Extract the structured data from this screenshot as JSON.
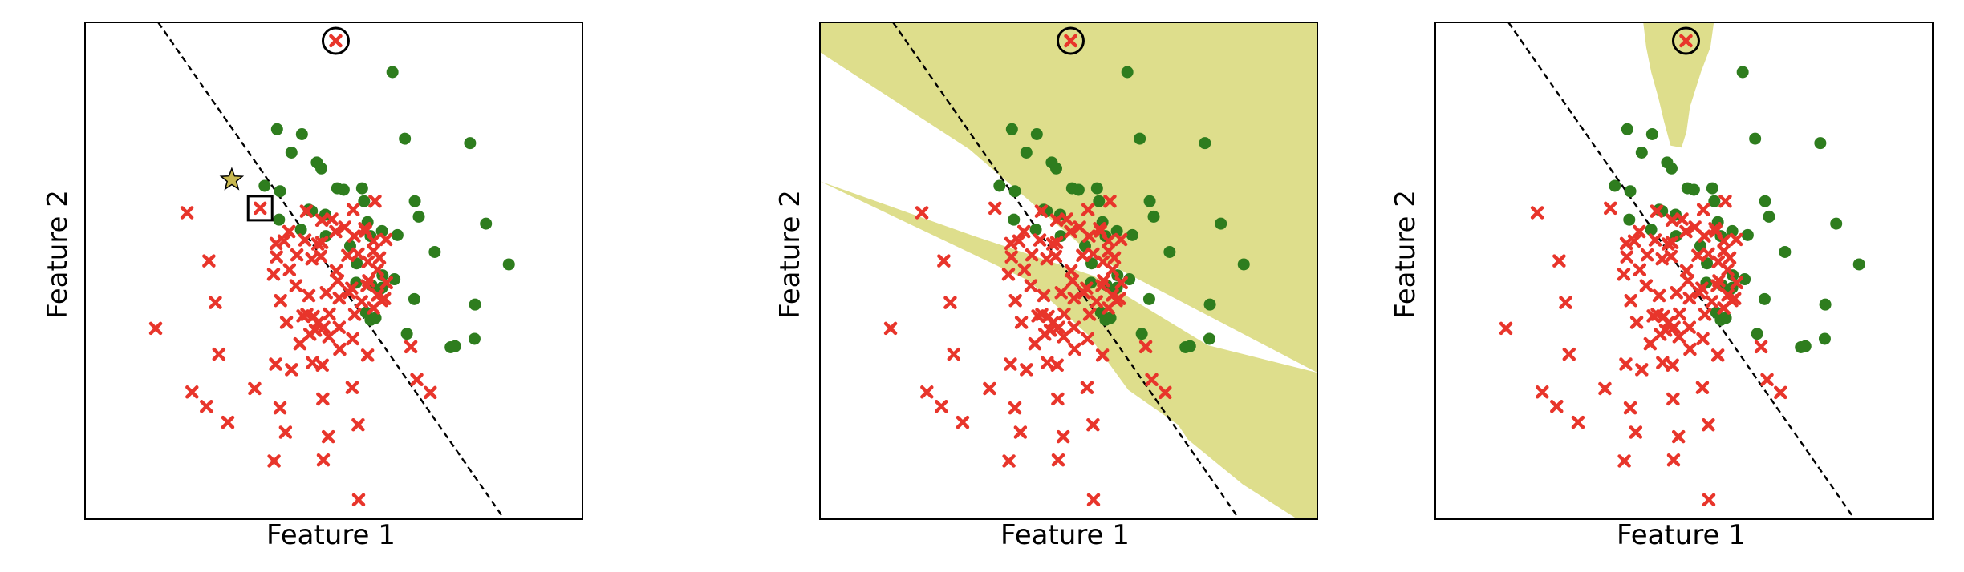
{
  "colors": {
    "class_a": "#e8352b",
    "class_b": "#2e7d1e",
    "region": "#dede8c",
    "star": "#c8b850",
    "boundary": "#000000"
  },
  "chart_data": [
    {
      "type": "scatter",
      "xlabel": "Feature 1",
      "ylabel": "Feature 2",
      "ticks": "none",
      "boundary_style": "dashed line",
      "region_fill": "none",
      "markers": {
        "star": "new sample",
        "square": "nearest neighbor",
        "circle": "outlier"
      }
    },
    {
      "type": "scatter",
      "xlabel": "Feature 1",
      "ylabel": "Feature 2",
      "ticks": "none",
      "boundary_style": "dashed line",
      "region_fill": "two shaded bands separated by white stripe",
      "markers": {
        "circle": "outlier"
      }
    },
    {
      "type": "scatter",
      "xlabel": "Feature 1",
      "ylabel": "Feature 2",
      "ticks": "none",
      "boundary_style": "dashed line",
      "region_fill": "small shaded region around outlier at top",
      "markers": {
        "circle": "outlier"
      }
    }
  ],
  "points": {
    "xlim": [
      0,
      100
    ],
    "ylim": [
      0,
      100
    ],
    "red": [
      [
        50.4,
        96.3
      ],
      [
        35.2,
        62.6
      ],
      [
        20.5,
        61.7
      ],
      [
        14.2,
        38.4
      ],
      [
        26.2,
        43.6
      ],
      [
        26.9,
        33.2
      ],
      [
        24.9,
        52.0
      ],
      [
        21.5,
        25.6
      ],
      [
        24.4,
        22.7
      ],
      [
        28.7,
        19.5
      ],
      [
        34.1,
        26.3
      ],
      [
        38.3,
        31.2
      ],
      [
        41.5,
        30.1
      ],
      [
        39.2,
        22.4
      ],
      [
        40.3,
        17.5
      ],
      [
        38.0,
        11.7
      ],
      [
        47.8,
        24.2
      ],
      [
        45.7,
        31.5
      ],
      [
        43.2,
        35.3
      ],
      [
        45.2,
        37.2
      ],
      [
        48.0,
        38.6
      ],
      [
        51.1,
        38.6
      ],
      [
        48.5,
        45.6
      ],
      [
        51.1,
        44.5
      ],
      [
        49.1,
        41.3
      ],
      [
        53.1,
        45.6
      ],
      [
        54.2,
        41.2
      ],
      [
        56.7,
        47.0
      ],
      [
        56.9,
        51.8
      ],
      [
        53.6,
        46.5
      ],
      [
        50.5,
        50.0
      ],
      [
        54.1,
        57.0
      ],
      [
        56.4,
        58.0
      ],
      [
        52.2,
        58.8
      ],
      [
        47.6,
        55.7
      ],
      [
        50.4,
        57.9
      ],
      [
        53.9,
        62.3
      ],
      [
        57.0,
        48.0
      ],
      [
        58.0,
        42.5
      ],
      [
        60.6,
        47.6
      ],
      [
        52.8,
        53.1
      ],
      [
        50.8,
        48.0
      ],
      [
        45.0,
        45.0
      ],
      [
        41.1,
        50.2
      ],
      [
        42.4,
        47.0
      ],
      [
        39.3,
        44.0
      ],
      [
        42.6,
        53.2
      ],
      [
        38.5,
        52.8
      ],
      [
        37.9,
        49.3
      ],
      [
        40.0,
        56.0
      ],
      [
        44.2,
        56.2
      ],
      [
        46.8,
        55.4
      ],
      [
        54.9,
        53.4
      ],
      [
        58.0,
        54.0
      ],
      [
        59.2,
        52.6
      ],
      [
        59.6,
        44.0
      ],
      [
        58.3,
        64.0
      ],
      [
        56.2,
        58.5
      ],
      [
        47.6,
        60.2
      ],
      [
        44.5,
        62.0
      ],
      [
        49.0,
        36.7
      ],
      [
        51.2,
        34.2
      ],
      [
        53.7,
        26.5
      ],
      [
        47.7,
        31.0
      ],
      [
        48.9,
        16.6
      ],
      [
        47.9,
        11.9
      ],
      [
        40.5,
        39.6
      ],
      [
        43.8,
        40.9
      ],
      [
        45.9,
        40.8
      ],
      [
        44.6,
        41.2
      ],
      [
        46.8,
        39.5
      ],
      [
        46.3,
        38.0
      ],
      [
        53.8,
        36.3
      ],
      [
        58.0,
        56.0
      ],
      [
        60.5,
        56.3
      ],
      [
        58.8,
        45.1
      ],
      [
        55.6,
        43.8
      ],
      [
        55.0,
        3.9
      ],
      [
        54.9,
        19.0
      ],
      [
        65.5,
        34.7
      ],
      [
        60.2,
        44.4
      ],
      [
        66.7,
        28.1
      ],
      [
        69.4,
        25.5
      ],
      [
        56.8,
        33.0
      ],
      [
        58.8,
        50.2
      ],
      [
        45.6,
        52.4
      ],
      [
        47.4,
        52.9
      ],
      [
        49.6,
        60.4
      ],
      [
        41.0,
        57.9
      ],
      [
        38.4,
        55.5
      ]
    ],
    "green": [
      [
        61.8,
        90.0
      ],
      [
        38.6,
        78.5
      ],
      [
        43.6,
        77.5
      ],
      [
        64.3,
        76.6
      ],
      [
        77.4,
        75.7
      ],
      [
        41.5,
        73.8
      ],
      [
        46.6,
        71.8
      ],
      [
        47.5,
        70.6
      ],
      [
        52.0,
        66.3
      ],
      [
        55.7,
        66.6
      ],
      [
        56.1,
        64.0
      ],
      [
        45.0,
        62.3
      ],
      [
        39.2,
        66.0
      ],
      [
        36.1,
        67.1
      ],
      [
        45.6,
        62.0
      ],
      [
        50.7,
        66.6
      ],
      [
        48.3,
        61.3
      ],
      [
        66.3,
        64.0
      ],
      [
        67.1,
        60.9
      ],
      [
        80.6,
        59.5
      ],
      [
        62.8,
        57.2
      ],
      [
        39.0,
        60.3
      ],
      [
        43.4,
        58.3
      ],
      [
        48.4,
        57.0
      ],
      [
        56.8,
        59.8
      ],
      [
        57.4,
        57.0
      ],
      [
        53.3,
        55.0
      ],
      [
        59.7,
        58.0
      ],
      [
        70.3,
        53.8
      ],
      [
        85.2,
        51.3
      ],
      [
        59.8,
        49.1
      ],
      [
        62.2,
        48.3
      ],
      [
        66.2,
        44.3
      ],
      [
        59.7,
        46.6
      ],
      [
        54.5,
        47.6
      ],
      [
        56.5,
        41.6
      ],
      [
        78.4,
        43.2
      ],
      [
        78.3,
        36.3
      ],
      [
        64.7,
        37.3
      ],
      [
        57.4,
        40.1
      ],
      [
        59.2,
        46.2
      ],
      [
        73.5,
        34.6
      ],
      [
        74.4,
        34.8
      ],
      [
        57.6,
        47.1
      ],
      [
        58.4,
        40.5
      ],
      [
        54.6,
        51.5
      ]
    ],
    "outlier": [
      50.4,
      96.3
    ],
    "star": [
      29.5,
      68.3
    ],
    "square_point": [
      35.2,
      62.6
    ]
  },
  "boundary_line": [
    [
      14.7,
      100
    ],
    [
      84.3,
      0
    ]
  ],
  "bands": {
    "upper": [
      [
        0,
        100
      ],
      [
        0,
        94
      ],
      [
        30,
        74.5
      ],
      [
        55,
        53
      ],
      [
        100,
        29.5
      ],
      [
        100,
        100
      ]
    ],
    "lower": [
      [
        0,
        68
      ],
      [
        31,
        57
      ],
      [
        55,
        49
      ],
      [
        78,
        35
      ],
      [
        100,
        29.5
      ],
      [
        100,
        0
      ],
      [
        96,
        0
      ],
      [
        85,
        7
      ],
      [
        74,
        16
      ],
      [
        72,
        19
      ],
      [
        62,
        26
      ],
      [
        54,
        37
      ],
      [
        42,
        48
      ],
      [
        0,
        68
      ]
    ],
    "lower_edge_note": "staircase"
  },
  "small_region": [
    [
      41.8,
      100
    ],
    [
      42.4,
      95
    ],
    [
      43.4,
      90
    ],
    [
      44.8,
      85
    ],
    [
      46.0,
      80
    ],
    [
      47.3,
      75.2
    ],
    [
      49.5,
      74.8
    ],
    [
      50.5,
      78
    ],
    [
      51.2,
      83
    ],
    [
      53.4,
      90
    ],
    [
      55.3,
      95
    ],
    [
      56.0,
      100
    ]
  ]
}
